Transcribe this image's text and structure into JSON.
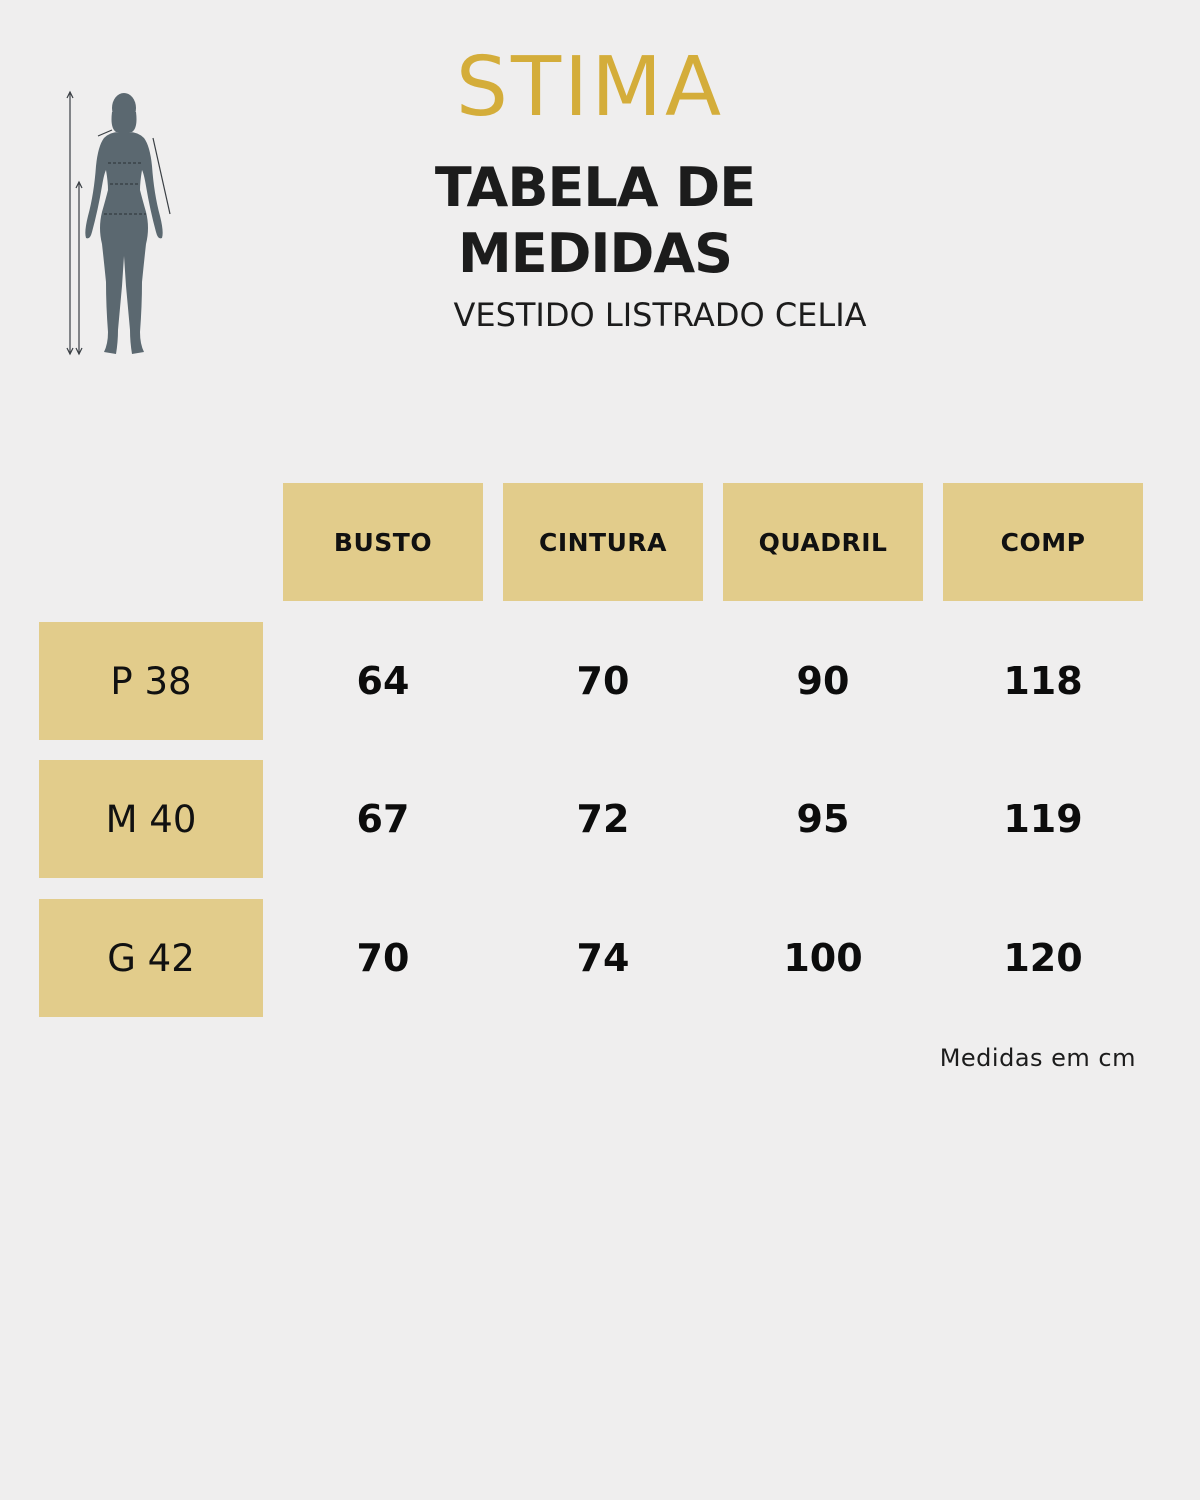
{
  "brand": {
    "logo_text": "STIMA",
    "accent_color": "#d4ad3a",
    "cell_color": "#e2cc8b"
  },
  "header": {
    "title": "TABELA DE MEDIDAS",
    "product": "VESTIDO LISTRADO CELIA"
  },
  "figure": {
    "icon": "body-measurement-silhouette-icon",
    "color": "#5b6870"
  },
  "table": {
    "columns": [
      "BUSTO",
      "CINTURA",
      "QUADRIL",
      "COMP"
    ],
    "rows": [
      {
        "size": "P 38",
        "values": [
          "64",
          "70",
          "90",
          "118"
        ]
      },
      {
        "size": "M 40",
        "values": [
          "67",
          "72",
          "95",
          "119"
        ]
      },
      {
        "size": "G 42",
        "values": [
          "70",
          "74",
          "100",
          "120"
        ]
      }
    ]
  },
  "footer": {
    "unit_note": "Medidas em cm"
  }
}
